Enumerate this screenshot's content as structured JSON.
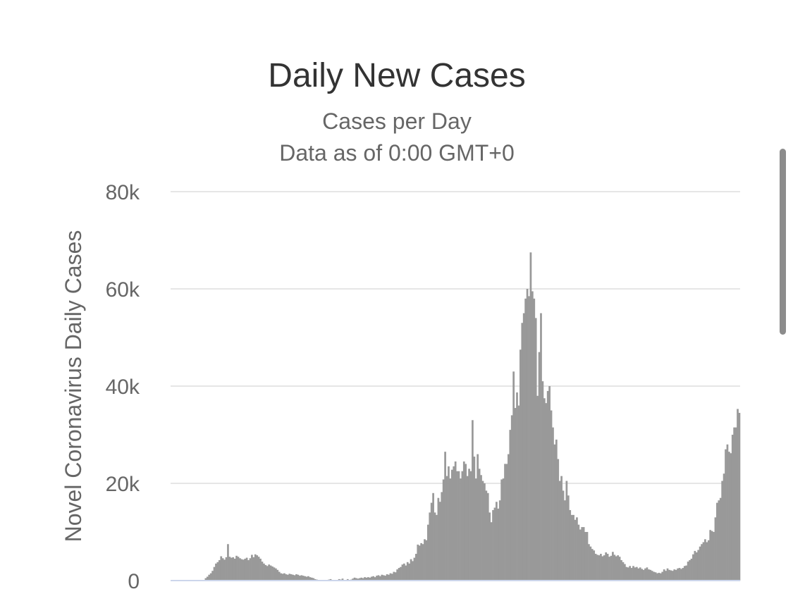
{
  "chart_data": {
    "type": "bar",
    "title": "Daily New Cases",
    "subtitle_lines": [
      "Cases per Day",
      "Data as of 0:00 GMT+0"
    ],
    "ylabel": "Novel Coronavirus Daily Cases",
    "xlabel": "",
    "ylim": [
      0,
      80000
    ],
    "yticks": [
      0,
      20000,
      40000,
      60000,
      80000
    ],
    "ytick_labels": [
      "0",
      "20k",
      "40k",
      "60k",
      "80k"
    ],
    "grid": true,
    "legend": "none",
    "bar_color": "#999999",
    "values": [
      0,
      0,
      0,
      0,
      0,
      0,
      0,
      0,
      0,
      0,
      0,
      0,
      0,
      0,
      0,
      0,
      0,
      0,
      0,
      0,
      500,
      800,
      1200,
      1500,
      2000,
      2800,
      3500,
      3800,
      4200,
      5000,
      4600,
      4300,
      4800,
      7500,
      4900,
      4700,
      4800,
      4500,
      5100,
      4900,
      4600,
      4400,
      4300,
      4500,
      4700,
      4200,
      4600,
      5300,
      4800,
      5400,
      5200,
      4900,
      4500,
      3900,
      3500,
      3200,
      3000,
      3300,
      3100,
      2900,
      2700,
      2500,
      2200,
      1800,
      1500,
      1400,
      1500,
      1300,
      1200,
      1400,
      1300,
      1200,
      1100,
      1300,
      1200,
      1000,
      1100,
      1000,
      900,
      800,
      900,
      700,
      600,
      500,
      300,
      200,
      100,
      50,
      0,
      0,
      0,
      0,
      200,
      300,
      0,
      0,
      0,
      0,
      300,
      200,
      400,
      0,
      0,
      300,
      0,
      200,
      400,
      600,
      500,
      400,
      500,
      600,
      500,
      700,
      600,
      700,
      600,
      800,
      900,
      700,
      1000,
      1100,
      900,
      1200,
      1100,
      1000,
      1300,
      1200,
      1500,
      1400,
      1800,
      1700,
      2300,
      2600,
      2800,
      3300,
      3500,
      3100,
      3800,
      3500,
      4400,
      4000,
      4700,
      5500,
      7400,
      7200,
      7700,
      7500,
      8500,
      8300,
      11500,
      14000,
      16000,
      18000,
      14000,
      13500,
      17000,
      16200,
      18200,
      20800,
      26500,
      21500,
      23500,
      21000,
      22800,
      23500,
      24500,
      22500,
      22500,
      21000,
      22500,
      24500,
      24000,
      21500,
      23000,
      22500,
      33000,
      25500,
      21000,
      26000,
      23000,
      21700,
      20500,
      20000,
      18500,
      18000,
      14000,
      12000,
      14500,
      15000,
      16200,
      14800,
      16500,
      20800,
      21000,
      24000,
      24000,
      26000,
      31000,
      34000,
      43000,
      35500,
      38700,
      36000,
      47500,
      53000,
      55000,
      58000,
      60000,
      58500,
      67500,
      59500,
      58000,
      54000,
      38000,
      47000,
      55000,
      41000,
      37500,
      36500,
      39000,
      40000,
      35000,
      31500,
      28000,
      29000,
      25000,
      20500,
      21500,
      18500,
      16500,
      20500,
      17500,
      14500,
      13500,
      13500,
      12500,
      13000,
      11500,
      10500,
      11000,
      11000,
      10000,
      10000,
      7500,
      7000,
      6500,
      6200,
      5500,
      5300,
      5200,
      5500,
      5000,
      5200,
      5800,
      5500,
      4900,
      5100,
      5900,
      5300,
      5000,
      5200,
      4900,
      4200,
      3800,
      3400,
      2800,
      2700,
      3000,
      2600,
      3000,
      2700,
      2800,
      2500,
      2700,
      2400,
      2200,
      2500,
      2700,
      2300,
      2200,
      2000,
      1800,
      1700,
      1500,
      1600,
      1500,
      1800,
      2300,
      2000,
      2500,
      2200,
      2100,
      2000,
      2300,
      2200,
      2500,
      2600,
      2400,
      2600,
      3000,
      3100,
      3900,
      4200,
      4500,
      5400,
      6100,
      5800,
      6300,
      7000,
      7500,
      7900,
      8500,
      7900,
      8300,
      10400,
      10200,
      10000,
      13000,
      16000,
      16500,
      17000,
      20500,
      22000,
      27000,
      28000,
      26500,
      26200,
      30000,
      31500,
      31500,
      35300,
      34500
    ]
  }
}
